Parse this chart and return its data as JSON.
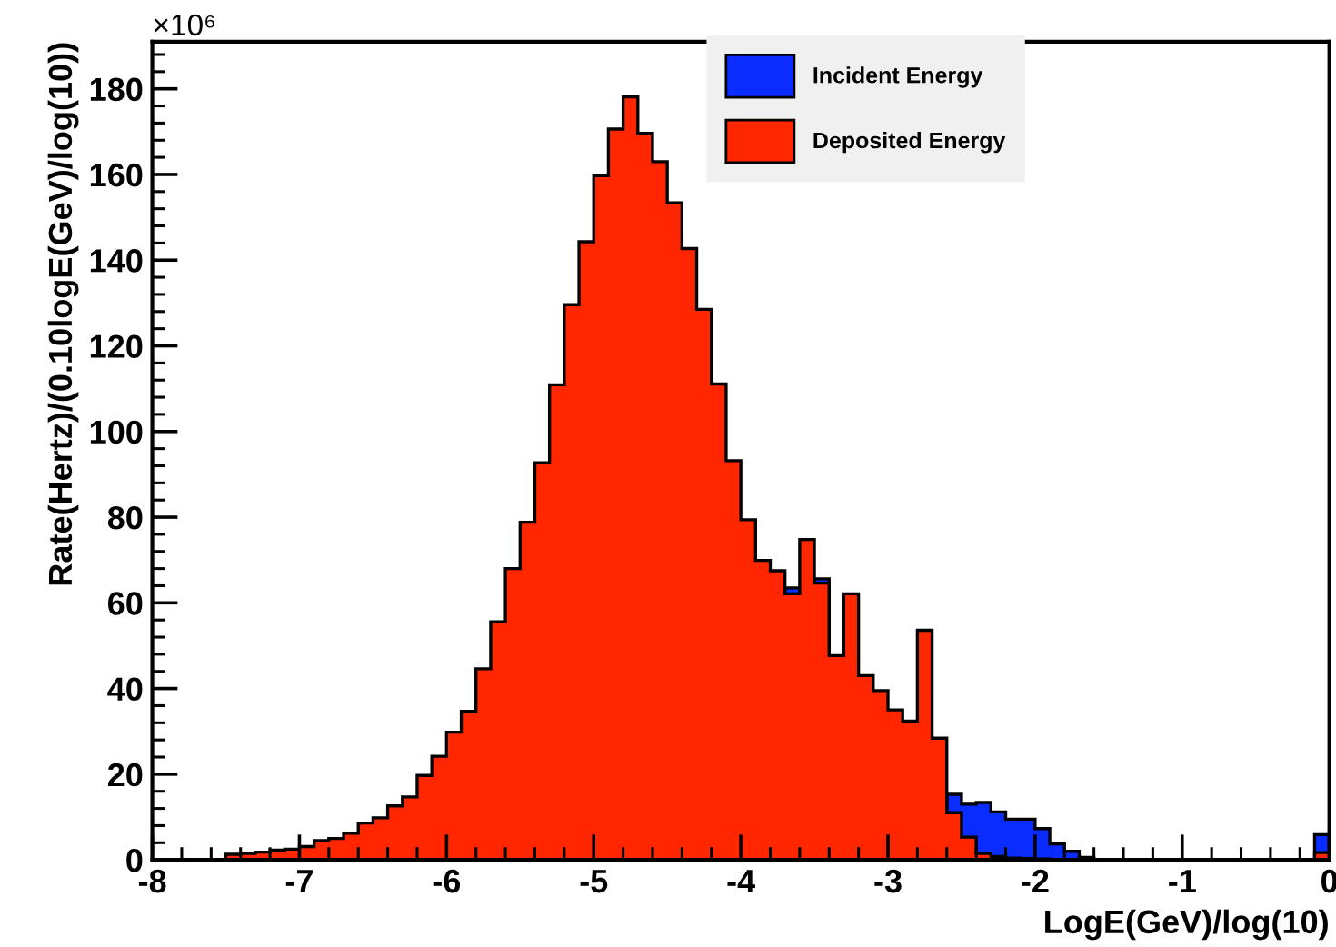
{
  "chart_data": {
    "type": "histogram",
    "xlabel": "LogE(GeV)/log(10)",
    "ylabel": "Rate(Hertz)/(0.10logE(GeV)/log(10))",
    "annotations": [
      "×10⁶"
    ],
    "bins": [
      -8.0,
      -7.9,
      -7.8,
      -7.7,
      -7.6,
      -7.5,
      -7.4,
      -7.3,
      -7.2,
      -7.1,
      -7.0,
      -6.9,
      -6.8,
      -6.7,
      -6.6,
      -6.5,
      -6.4,
      -6.3,
      -6.2,
      -6.1,
      -6.0,
      -5.9,
      -5.8,
      -5.7,
      -5.6,
      -5.5,
      -5.4,
      -5.3,
      -5.2,
      -5.1,
      -5.0,
      -4.9,
      -4.8,
      -4.7,
      -4.6,
      -4.5,
      -4.4,
      -4.3,
      -4.2,
      -4.1,
      -4.0,
      -3.9,
      -3.8,
      -3.7,
      -3.6,
      -3.5,
      -3.4,
      -3.3,
      -3.2,
      -3.1,
      -3.0,
      -2.9,
      -2.8,
      -2.7,
      -2.6,
      -2.5,
      -2.4,
      -2.3,
      -2.2,
      -2.1,
      -2.0,
      -1.9,
      -1.8,
      -1.7,
      -1.6,
      -1.5,
      -1.4,
      -1.3,
      -1.2,
      -1.1,
      -1.0,
      -0.9,
      -0.8,
      -0.7,
      -0.6,
      -0.5,
      -0.4,
      -0.3,
      -0.2,
      -0.1,
      0.0
    ],
    "series": [
      {
        "name": "Incident Energy",
        "color": "#0a2cff",
        "values": [
          null,
          null,
          null,
          null,
          null,
          null,
          null,
          null,
          null,
          null,
          null,
          null,
          null,
          null,
          null,
          null,
          null,
          null,
          null,
          null,
          null,
          null,
          null,
          null,
          null,
          null,
          null,
          null,
          null,
          null,
          null,
          null,
          null,
          null,
          null,
          null,
          null,
          null,
          null,
          null,
          null,
          null,
          null,
          63.5,
          null,
          65.6,
          null,
          null,
          null,
          null,
          null,
          null,
          null,
          null,
          15.3,
          13,
          13.4,
          11.2,
          9.5,
          9.5,
          7.3,
          3.7,
          2,
          0.6,
          0,
          0,
          0,
          0,
          0,
          0,
          0,
          0,
          0,
          0,
          0,
          0,
          0,
          0,
          0,
          5.9
        ]
      },
      {
        "name": "Deposited Energy",
        "color": "#ff2600",
        "values": [
          0,
          0,
          0,
          0,
          0,
          1.3,
          1.5,
          1.8,
          2.3,
          2.5,
          3.1,
          4.5,
          5,
          6.2,
          8.6,
          9.8,
          12.6,
          14.7,
          19.7,
          24.2,
          29.8,
          34.7,
          44.6,
          55.6,
          68,
          78.8,
          92.7,
          110.9,
          129.6,
          144.3,
          159.7,
          170.6,
          178.1,
          169.6,
          163,
          153.4,
          142.7,
          128.5,
          111.1,
          93.2,
          79.4,
          69.9,
          67.5,
          62.1,
          74.8,
          64.6,
          47.7,
          62.1,
          43,
          39.5,
          35,
          32.4,
          53.6,
          28.4,
          11,
          5.3,
          1.5,
          0.8,
          0.4,
          0.3,
          0.2,
          0,
          0,
          0,
          0,
          0,
          0,
          0,
          0,
          0,
          0,
          0,
          0,
          0,
          0,
          0,
          0,
          0,
          0,
          1.7
        ]
      }
    ],
    "xlim": [
      -8,
      0
    ],
    "xticks": [
      -8,
      -7,
      -6,
      -5,
      -4,
      -3,
      -2,
      -1,
      0
    ],
    "ylim": [
      0,
      191
    ],
    "yticks": [
      0,
      20,
      40,
      60,
      80,
      100,
      120,
      140,
      160,
      180
    ],
    "legend": "top right",
    "grid": false
  }
}
